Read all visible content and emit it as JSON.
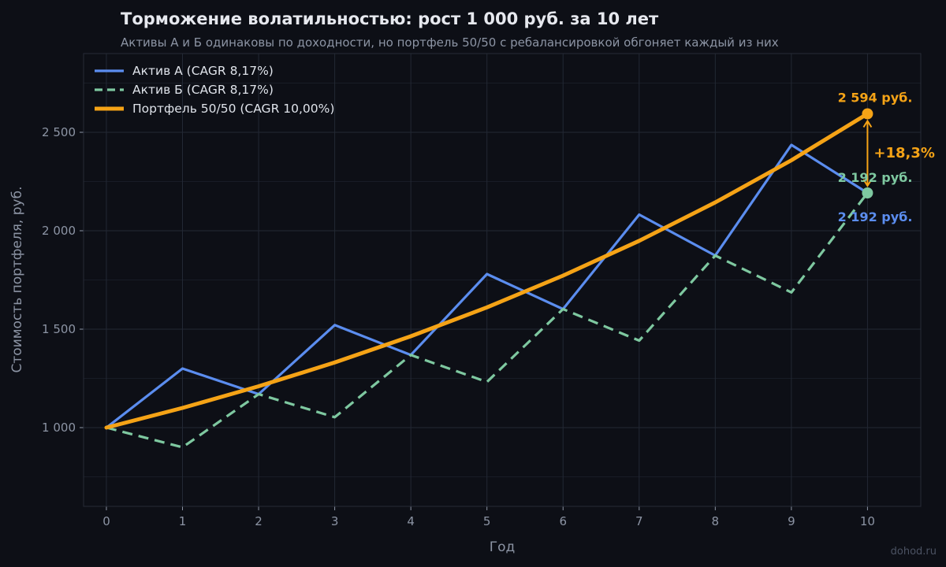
{
  "chart_data": {
    "type": "line",
    "title": "Торможение волатильностью: рост 1 000 руб. за 10 лет",
    "subtitle": "Активы А и Б одинаковы по доходности, но портфель 50/50 с ребалансировкой обгоняет каждый из них",
    "xlabel": "Год",
    "ylabel": "Стоимость портфеля, руб.",
    "x": [
      0,
      1,
      2,
      3,
      4,
      5,
      6,
      7,
      8,
      9,
      10
    ],
    "xlim": [
      -0.3,
      10.7
    ],
    "ylim": [
      600,
      2900
    ],
    "x_ticks": [
      0,
      1,
      2,
      3,
      4,
      5,
      6,
      7,
      8,
      9,
      10
    ],
    "x_tick_labels": [
      "0",
      "1",
      "2",
      "3",
      "4",
      "5",
      "6",
      "7",
      "8",
      "9",
      "10"
    ],
    "y_ticks": [
      1000,
      1500,
      2000,
      2500
    ],
    "y_tick_labels": [
      "1 000",
      "1 500",
      "2 000",
      "2 500"
    ],
    "y_minor_ticks": [
      750,
      1250,
      1750,
      2250,
      2750
    ],
    "grid": true,
    "legend_position": "top-left",
    "series": [
      {
        "name": "Актив А  (CAGR 8,17%)",
        "style": "solid",
        "color": "#5b8def",
        "values": [
          1000,
          1300,
          1170,
          1521,
          1369,
          1780,
          1602,
          2082,
          1874,
          2436,
          2192
        ]
      },
      {
        "name": "Актив Б  (CAGR 8,17%)",
        "style": "dashed",
        "color": "#7ec8a0",
        "values": [
          1000,
          900,
          1170,
          1053,
          1369,
          1232,
          1602,
          1442,
          1874,
          1687,
          2192
        ]
      },
      {
        "name": "Портфель 50/50  (CAGR 10,00%)",
        "style": "solid",
        "color": "#f5a316",
        "values": [
          1000,
          1100,
          1210,
          1331,
          1464,
          1611,
          1772,
          1949,
          2144,
          2358,
          2594
        ]
      }
    ],
    "annotations": [
      {
        "text": "2 594 руб.",
        "color": "#f5a316",
        "x": 10,
        "y": 2594,
        "anchor": "above"
      },
      {
        "text": "2 192 руб.",
        "color": "#7ec8a0",
        "x": 10,
        "y": 2192,
        "anchor": "above"
      },
      {
        "text": "2 192 руб.",
        "color": "#5b8def",
        "x": 10,
        "y": 2192,
        "anchor": "below"
      },
      {
        "text": "+18,3%",
        "color": "#f5a316",
        "x": 10,
        "y_from": 2192,
        "y_to": 2594,
        "anchor": "right"
      }
    ]
  },
  "watermark": "dohod.ru",
  "colors": {
    "background": "#0d0f16",
    "plot_background": "#0d0f16",
    "grid_major": "#232834",
    "grid_minor": "#181c26",
    "tick_text": "#8c94a4",
    "title_text": "#e6e8ee",
    "legend_text": "#dfe3ea"
  }
}
